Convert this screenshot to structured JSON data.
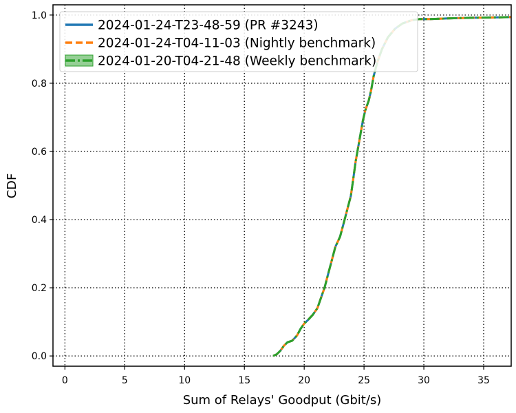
{
  "chart_data": {
    "type": "line",
    "title": "",
    "xlabel": "Sum of Relays' Goodput (Gbit/s)",
    "ylabel": "CDF",
    "xlim": [
      -1,
      37.3
    ],
    "ylim": [
      -0.03,
      1.03
    ],
    "xticks": [
      0,
      5,
      10,
      15,
      20,
      25,
      30,
      35
    ],
    "yticks": [
      0.0,
      0.2,
      0.4,
      0.6,
      0.8,
      1.0
    ],
    "xtick_labels": [
      "0",
      "5",
      "10",
      "15",
      "20",
      "25",
      "30",
      "35"
    ],
    "ytick_labels": [
      "0.0",
      "0.2",
      "0.4",
      "0.6",
      "0.8",
      "1.0"
    ],
    "grid": true,
    "legend_position": "top-left",
    "series": [
      {
        "name": "2024-01-24-T23-48-59 (PR #3243)",
        "color": "#1f77b4",
        "style": "solid",
        "x": [
          17.4,
          17.7,
          18.0,
          18.3,
          18.6,
          19.0,
          19.4,
          19.7,
          20.0,
          20.3,
          20.7,
          21.1,
          21.4,
          21.7,
          22.0,
          22.3,
          22.6,
          23.0,
          23.3,
          23.6,
          23.9,
          24.1,
          24.3,
          24.5,
          24.7,
          24.9,
          25.1,
          25.4,
          25.6,
          25.8,
          26.1,
          26.5,
          27.0,
          27.6,
          28.2,
          29.0,
          29.6,
          30.5,
          32.0,
          34.0,
          36.0,
          37.3
        ],
        "y": [
          0.0,
          0.005,
          0.015,
          0.03,
          0.04,
          0.045,
          0.06,
          0.08,
          0.095,
          0.105,
          0.12,
          0.14,
          0.17,
          0.2,
          0.24,
          0.28,
          0.32,
          0.35,
          0.39,
          0.43,
          0.47,
          0.52,
          0.57,
          0.61,
          0.65,
          0.69,
          0.72,
          0.75,
          0.78,
          0.82,
          0.86,
          0.9,
          0.935,
          0.96,
          0.975,
          0.985,
          0.988,
          0.988,
          0.99,
          0.992,
          0.993,
          0.994
        ]
      },
      {
        "name": "2024-01-24-T04-11-03 (Nightly benchmark)",
        "color": "#ff7f0e",
        "style": "dashed",
        "x": [
          17.4,
          17.7,
          18.0,
          18.3,
          18.6,
          19.0,
          19.4,
          19.7,
          20.0,
          20.3,
          20.7,
          21.1,
          21.4,
          21.7,
          22.0,
          22.3,
          22.6,
          23.0,
          23.3,
          23.6,
          23.9,
          24.1,
          24.3,
          24.5,
          24.7,
          24.9,
          25.1,
          25.4,
          25.6,
          25.8,
          26.1,
          26.5,
          27.0,
          27.6,
          28.2,
          29.0,
          29.6,
          30.5,
          32.0,
          34.0,
          36.0,
          37.3
        ],
        "y": [
          0.0,
          0.005,
          0.015,
          0.03,
          0.04,
          0.045,
          0.06,
          0.08,
          0.095,
          0.105,
          0.12,
          0.14,
          0.17,
          0.2,
          0.24,
          0.28,
          0.32,
          0.35,
          0.39,
          0.43,
          0.47,
          0.52,
          0.57,
          0.61,
          0.65,
          0.69,
          0.72,
          0.75,
          0.78,
          0.82,
          0.86,
          0.9,
          0.935,
          0.96,
          0.975,
          0.985,
          0.988,
          0.988,
          0.99,
          0.992,
          0.993,
          0.994
        ]
      },
      {
        "name": "2024-01-20-T04-21-48 (Weekly benchmark)",
        "color": "#2ca02c",
        "style": "dashdot",
        "x": [
          17.4,
          17.7,
          18.0,
          18.3,
          18.6,
          19.0,
          19.4,
          19.7,
          20.0,
          20.3,
          20.7,
          21.1,
          21.4,
          21.7,
          22.0,
          22.3,
          22.6,
          23.0,
          23.3,
          23.6,
          23.9,
          24.1,
          24.3,
          24.5,
          24.7,
          24.9,
          25.1,
          25.4,
          25.6,
          25.8,
          26.1,
          26.5,
          27.0,
          27.6,
          28.2,
          29.0,
          29.6,
          30.5,
          32.0,
          34.0,
          36.0,
          37.3
        ],
        "y": [
          0.0,
          0.005,
          0.015,
          0.03,
          0.04,
          0.045,
          0.06,
          0.08,
          0.095,
          0.105,
          0.12,
          0.14,
          0.17,
          0.2,
          0.24,
          0.28,
          0.32,
          0.35,
          0.39,
          0.43,
          0.47,
          0.52,
          0.57,
          0.61,
          0.65,
          0.69,
          0.72,
          0.75,
          0.78,
          0.82,
          0.86,
          0.9,
          0.935,
          0.96,
          0.975,
          0.985,
          0.988,
          0.988,
          0.99,
          0.992,
          0.993,
          0.994
        ]
      }
    ]
  }
}
